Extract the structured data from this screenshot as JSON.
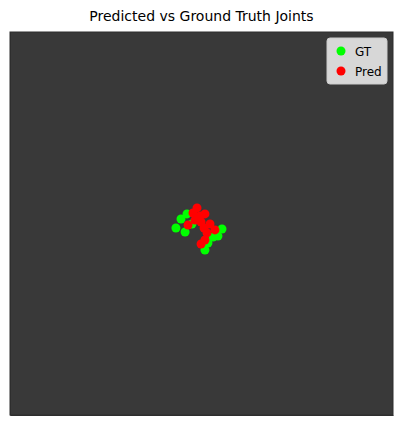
{
  "chart_data": {
    "type": "scatter",
    "title": "Predicted vs Ground Truth Joints",
    "xlim": [
      0,
      256
    ],
    "ylim": [
      256,
      0
    ],
    "tick_labels": false,
    "legend": "upper right",
    "series": [
      {
        "name": "GT",
        "color": "#00ff00",
        "marker": "circle",
        "x": [
          110.9,
          114.3,
          118.3,
          117.0,
          121.6,
          135.7,
          139.0,
          141.7,
          132.3,
          130.3
        ],
        "values": [
          131.0,
          125.0,
          121.6,
          133.7,
          128.3,
          137.0,
          136.4,
          131.7,
          141.0,
          145.7
        ]
      },
      {
        "name": "Pred",
        "color": "#ff0000",
        "marker": "circle",
        "x": [
          125.0,
          130.3,
          122.3,
          127.0,
          123.7,
          119.0,
          127.7,
          133.7,
          129.7,
          137.0,
          131.7,
          130.3,
          127.7
        ],
        "values": [
          117.6,
          121.6,
          121.0,
          123.0,
          125.7,
          129.0,
          127.0,
          128.3,
          131.0,
          132.3,
          134.3,
          139.0,
          141.7
        ]
      }
    ]
  }
}
